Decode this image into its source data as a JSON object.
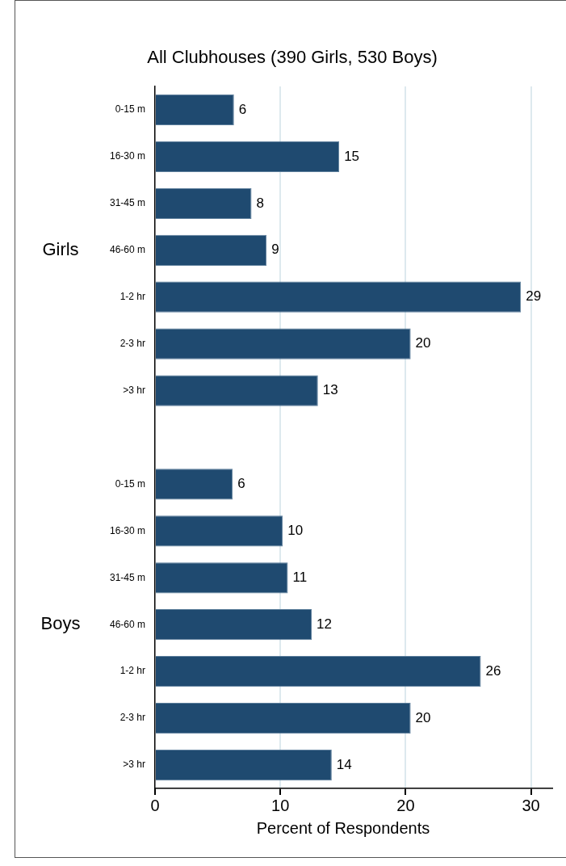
{
  "chart_data": {
    "type": "bar",
    "orientation": "horizontal",
    "title": "All Clubhouses (390 Girls, 530 Boys)",
    "xlabel": "Percent of Respondents",
    "annotations": [
      "Girls",
      "Boys"
    ],
    "categories": [
      "0-15 m",
      "16-30 m",
      "31-45 m",
      "46-60 m",
      "1-2 hr",
      "2-3 hr",
      ">3 hr",
      null,
      "0-15 m",
      "16-30 m",
      "31-45 m",
      "46-60 m",
      "1-2 hr",
      "2-3 hr",
      ">3 hr"
    ],
    "values": [
      6.3,
      14.7,
      7.7,
      8.9,
      29.2,
      20.4,
      13.0,
      null,
      6.2,
      10.2,
      10.6,
      12.5,
      26.0,
      20.4,
      14.1
    ],
    "value_labels": [
      "6",
      "15",
      "8",
      "9",
      "29",
      "20",
      "13",
      null,
      "6",
      "10",
      "11",
      "12",
      "26",
      "20",
      "14"
    ],
    "color": "#1f4a70",
    "xlim": [
      0,
      31.7
    ],
    "xticks": [
      0,
      10,
      20,
      30
    ],
    "grid": "x"
  }
}
